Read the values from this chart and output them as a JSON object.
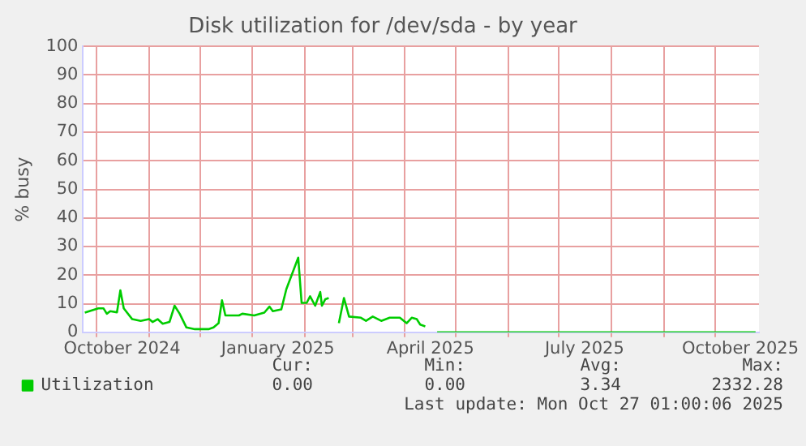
{
  "chart_data": {
    "type": "line",
    "title": "Disk utilization for /dev/sda - by year",
    "ylabel": "% busy",
    "x": [
      "2024-09-24",
      "2024-10-02",
      "2024-10-05",
      "2024-10-07",
      "2024-10-09",
      "2024-10-13",
      "2024-10-15",
      "2024-10-17",
      "2024-10-22",
      "2024-10-27",
      "2024-11-01",
      "2024-11-03",
      "2024-11-06",
      "2024-11-09",
      "2024-11-13",
      "2024-11-16",
      "2024-11-19",
      "2024-11-23",
      "2024-11-28",
      "2024-12-06",
      "2024-12-09",
      "2024-12-12",
      "2024-12-14",
      "2024-12-16",
      "2024-12-24",
      "2024-12-26",
      "2025-01-02",
      "2025-01-08",
      "2025-01-11",
      "2025-01-13",
      "2025-01-18",
      "2025-01-21",
      "2025-01-28",
      "2025-01-30",
      "2025-02-02",
      "2025-02-04",
      "2025-02-07",
      "2025-02-10",
      "2025-02-11",
      "2025-02-13",
      "2025-02-15",
      "2025-02-18",
      "2025-02-21",
      "2025-02-24",
      "2025-02-27",
      "2025-03-06",
      "2025-03-09",
      "2025-03-13",
      "2025-03-18",
      "2025-03-23",
      "2025-03-29",
      "2025-04-02",
      "2025-04-05",
      "2025-04-08",
      "2025-04-10",
      "2025-04-13",
      "2025-04-16",
      "2025-04-20",
      "2025-10-25"
    ],
    "series": [
      {
        "name": "Utilization",
        "color": "#00cc00",
        "values": [
          6.9,
          8.4,
          8.4,
          6.5,
          7.4,
          7.0,
          14.7,
          8.4,
          4.6,
          4.0,
          4.6,
          3.6,
          4.6,
          3.0,
          3.6,
          9.3,
          6.5,
          1.7,
          1.1,
          1.1,
          1.7,
          3.2,
          11.2,
          5.9,
          5.9,
          6.5,
          5.9,
          6.9,
          9.0,
          7.4,
          8.0,
          15.1,
          26.1,
          10.3,
          10.3,
          12.6,
          9.3,
          14.1,
          9.3,
          11.6,
          12.0,
          null,
          3.2,
          12.0,
          5.5,
          5.1,
          4.0,
          5.5,
          4.0,
          5.1,
          5.1,
          3.2,
          5.1,
          4.6,
          2.7,
          2.1,
          null,
          0,
          0
        ]
      }
    ],
    "xlim": [
      "2024-09-23",
      "2025-10-27"
    ],
    "xticks": [
      {
        "value": "2024-10-01",
        "label": null
      },
      {
        "value": "2024-10-16",
        "label": "October 2024"
      },
      {
        "value": "2024-11-01",
        "label": null
      },
      {
        "value": "2024-12-01",
        "label": null
      },
      {
        "value": "2025-01-01",
        "label": null
      },
      {
        "value": "2025-01-16",
        "label": "January 2025"
      },
      {
        "value": "2025-02-01",
        "label": null
      },
      {
        "value": "2025-03-01",
        "label": null
      },
      {
        "value": "2025-04-01",
        "label": null
      },
      {
        "value": "2025-04-16",
        "label": "April 2025"
      },
      {
        "value": "2025-05-01",
        "label": null
      },
      {
        "value": "2025-06-01",
        "label": null
      },
      {
        "value": "2025-07-01",
        "label": null
      },
      {
        "value": "2025-07-16",
        "label": "July 2025"
      },
      {
        "value": "2025-08-01",
        "label": null
      },
      {
        "value": "2025-09-01",
        "label": null
      },
      {
        "value": "2025-10-01",
        "label": null
      },
      {
        "value": "2025-10-16",
        "label": "October 2025"
      }
    ],
    "ylim": [
      0,
      100
    ],
    "yticks": [
      0,
      10,
      20,
      30,
      40,
      50,
      60,
      70,
      80,
      90,
      100
    ],
    "grid": true,
    "legend": "bottom left",
    "marker": "none",
    "line_style": "solid",
    "annotations": [
      "Cur:",
      "Min:",
      "Avg:",
      "Max:",
      "0.00",
      "0.00",
      "3.34",
      "2332.28",
      "Last update: Mon Oct 27 01:00:06 2025"
    ]
  }
}
